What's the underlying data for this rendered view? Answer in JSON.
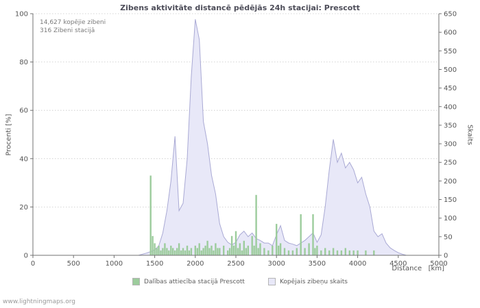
{
  "footer": {
    "watermark": "www.lightningmaps.org"
  },
  "chart_data": {
    "type": "mixed",
    "title": "Zibens aktivitāte distancē pēdējās 24h stacijai: Prescott",
    "xlabel": "Distance   [km]",
    "ylabel_left": "Procenti  [%]",
    "ylabel_right": "Skaits",
    "xlim": [
      0,
      5000
    ],
    "ylim_left": [
      0,
      100
    ],
    "ylim_right": [
      0,
      650
    ],
    "x_ticks": [
      0,
      500,
      1000,
      1500,
      2000,
      2500,
      3000,
      3500,
      4000,
      4500,
      5000
    ],
    "y_ticks_left": [
      0,
      20,
      40,
      60,
      80,
      100
    ],
    "y_ticks_right": [
      0,
      50,
      100,
      150,
      200,
      250,
      300,
      350,
      400,
      450,
      500,
      550,
      600,
      650
    ],
    "grid": "horizontal-dotted",
    "legend_position": "bottom-center",
    "annotations": [
      "14,627 kopējie zibeni",
      "316 Zibeni stacijā"
    ],
    "series": [
      {
        "name": "Dalības attiecība stacijā Prescott",
        "type": "bar",
        "axis": "left",
        "color": "#9ccc9c",
        "points": [
          [
            1450,
            33
          ],
          [
            1475,
            8
          ],
          [
            1500,
            5
          ],
          [
            1525,
            3
          ],
          [
            1550,
            4
          ],
          [
            1575,
            2
          ],
          [
            1600,
            3
          ],
          [
            1625,
            5
          ],
          [
            1650,
            3
          ],
          [
            1675,
            2
          ],
          [
            1700,
            4
          ],
          [
            1725,
            3
          ],
          [
            1750,
            2
          ],
          [
            1775,
            3
          ],
          [
            1800,
            5
          ],
          [
            1825,
            2
          ],
          [
            1850,
            3
          ],
          [
            1875,
            2
          ],
          [
            1900,
            4
          ],
          [
            1925,
            2
          ],
          [
            1950,
            3
          ],
          [
            2000,
            4
          ],
          [
            2025,
            3
          ],
          [
            2050,
            5
          ],
          [
            2075,
            2
          ],
          [
            2100,
            3
          ],
          [
            2125,
            4
          ],
          [
            2150,
            6
          ],
          [
            2175,
            3
          ],
          [
            2200,
            4
          ],
          [
            2225,
            2
          ],
          [
            2250,
            5
          ],
          [
            2275,
            3
          ],
          [
            2300,
            3
          ],
          [
            2350,
            4
          ],
          [
            2400,
            2
          ],
          [
            2425,
            3
          ],
          [
            2450,
            8
          ],
          [
            2475,
            4
          ],
          [
            2500,
            10
          ],
          [
            2525,
            3
          ],
          [
            2550,
            5
          ],
          [
            2575,
            2
          ],
          [
            2600,
            6
          ],
          [
            2625,
            3
          ],
          [
            2650,
            4
          ],
          [
            2700,
            8
          ],
          [
            2725,
            4
          ],
          [
            2750,
            25
          ],
          [
            2775,
            3
          ],
          [
            2800,
            5
          ],
          [
            2850,
            3
          ],
          [
            2900,
            2
          ],
          [
            2950,
            4
          ],
          [
            3000,
            13
          ],
          [
            3025,
            4
          ],
          [
            3050,
            5
          ],
          [
            3100,
            3
          ],
          [
            3150,
            2
          ],
          [
            3200,
            2
          ],
          [
            3250,
            3
          ],
          [
            3300,
            17
          ],
          [
            3350,
            3
          ],
          [
            3400,
            5
          ],
          [
            3450,
            17
          ],
          [
            3475,
            3
          ],
          [
            3500,
            4
          ],
          [
            3550,
            2
          ],
          [
            3600,
            3
          ],
          [
            3650,
            2
          ],
          [
            3700,
            3
          ],
          [
            3750,
            2
          ],
          [
            3800,
            2
          ],
          [
            3850,
            3
          ],
          [
            3900,
            2
          ],
          [
            3950,
            2
          ],
          [
            4000,
            2
          ],
          [
            4100,
            2
          ],
          [
            4200,
            2
          ]
        ]
      },
      {
        "name": "Kopējais zibeņu skaits",
        "type": "area",
        "axis": "right",
        "fill": "#e8e8f8",
        "stroke": "#a9a9d4",
        "x_start": 0,
        "x_step": 50,
        "values": [
          0,
          0,
          0,
          0,
          0,
          0,
          0,
          0,
          0,
          0,
          0,
          0,
          0,
          0,
          0,
          0,
          0,
          0,
          0,
          0,
          0,
          0,
          0,
          0,
          0,
          0,
          0,
          3,
          6,
          10,
          15,
          25,
          60,
          120,
          200,
          320,
          120,
          140,
          260,
          480,
          635,
          580,
          360,
          300,
          215,
          165,
          85,
          50,
          35,
          28,
          35,
          55,
          65,
          50,
          60,
          45,
          40,
          33,
          33,
          26,
          55,
          80,
          40,
          33,
          30,
          26,
          33,
          40,
          50,
          60,
          35,
          55,
          130,
          230,
          312,
          250,
          275,
          235,
          250,
          230,
          195,
          210,
          165,
          130,
          65,
          50,
          58,
          33,
          20,
          13,
          7,
          3,
          0,
          0,
          0,
          0,
          0,
          0,
          0,
          0,
          0
        ]
      }
    ]
  }
}
